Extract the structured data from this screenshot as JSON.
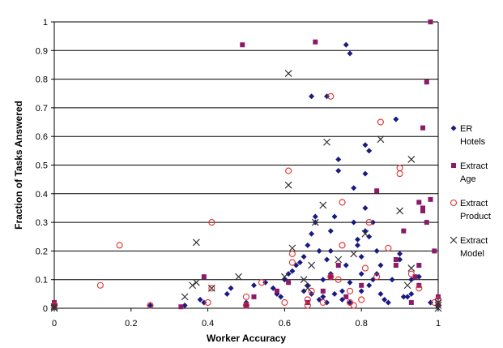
{
  "chart_data": {
    "type": "scatter",
    "title": "",
    "xlabel": "Worker Accuracy",
    "ylabel": "Fraction of Tasks Answered",
    "xlim": [
      0,
      1
    ],
    "ylim": [
      0,
      1
    ],
    "x_ticks": [
      "0",
      "0.2",
      "0.4",
      "0.6",
      "0.8",
      "1"
    ],
    "y_ticks": [
      "0",
      "0.1",
      "0.2",
      "0.3",
      "0.4",
      "0.5",
      "0.6",
      "0.7",
      "0.8",
      "0.9",
      "1"
    ],
    "grid": "horizontal",
    "legend_position": "right",
    "series": [
      {
        "name_lines": [
          "ER",
          "Hotels"
        ],
        "marker": "diamond",
        "color": "#1a1a80",
        "points": [
          [
            0,
            0.005
          ],
          [
            0,
            0.01
          ],
          [
            0.25,
            0.01
          ],
          [
            0.34,
            0.01
          ],
          [
            0.39,
            0.02
          ],
          [
            0.38,
            0.03
          ],
          [
            0.45,
            0.05
          ],
          [
            0.46,
            0.07
          ],
          [
            0.5,
            0.02
          ],
          [
            0.52,
            0.08
          ],
          [
            0.55,
            0.09
          ],
          [
            0.57,
            0.07
          ],
          [
            0.58,
            0.05
          ],
          [
            0.59,
            0.04
          ],
          [
            0.6,
            0.1
          ],
          [
            0.61,
            0.12
          ],
          [
            0.62,
            0.13
          ],
          [
            0.63,
            0.15
          ],
          [
            0.64,
            0.16
          ],
          [
            0.65,
            0.06
          ],
          [
            0.65,
            0.18
          ],
          [
            0.66,
            0.08
          ],
          [
            0.66,
            0.22
          ],
          [
            0.67,
            0.05
          ],
          [
            0.67,
            0.26
          ],
          [
            0.68,
            0.3
          ],
          [
            0.68,
            0.32
          ],
          [
            0.69,
            0.03
          ],
          [
            0.69,
            0.2
          ],
          [
            0.7,
            0.1
          ],
          [
            0.7,
            0.04
          ],
          [
            0.71,
            0.02
          ],
          [
            0.71,
            0.17
          ],
          [
            0.72,
            0.12
          ],
          [
            0.72,
            0.27
          ],
          [
            0.73,
            0.05
          ],
          [
            0.73,
            0.32
          ],
          [
            0.74,
            0.48
          ],
          [
            0.74,
            0.52
          ],
          [
            0.75,
            0.06
          ],
          [
            0.75,
            0.03
          ],
          [
            0.76,
            0.15
          ],
          [
            0.77,
            0.09
          ],
          [
            0.77,
            0.02
          ],
          [
            0.78,
            0.42
          ],
          [
            0.78,
            0.3
          ],
          [
            0.79,
            0.22
          ],
          [
            0.79,
            0.24
          ],
          [
            0.8,
            0.12
          ],
          [
            0.8,
            0.18
          ],
          [
            0.8,
            0.06
          ],
          [
            0.81,
            0.27
          ],
          [
            0.81,
            0.35
          ],
          [
            0.81,
            0.57
          ],
          [
            0.82,
            0.55
          ],
          [
            0.82,
            0.25
          ],
          [
            0.82,
            0.08
          ],
          [
            0.83,
            0.1
          ],
          [
            0.83,
            0.3
          ],
          [
            0.84,
            0.2
          ],
          [
            0.84,
            0.12
          ],
          [
            0.85,
            0.05
          ],
          [
            0.85,
            0.15
          ],
          [
            0.86,
            0.03
          ],
          [
            0.87,
            0.02
          ],
          [
            0.88,
            0.1
          ],
          [
            0.89,
            0.66
          ],
          [
            0.9,
            0.19
          ],
          [
            0.9,
            0.17
          ],
          [
            0.91,
            0.04
          ],
          [
            0.92,
            0.04
          ],
          [
            0.93,
            0.05
          ],
          [
            0.93,
            0.1
          ],
          [
            0.95,
            0.11
          ],
          [
            0.98,
            0.02
          ],
          [
            1,
            0.01
          ],
          [
            0.67,
            0.74
          ],
          [
            0.71,
            0.74
          ],
          [
            0.76,
            0.92
          ],
          [
            0.77,
            0.89
          ],
          [
            0.81,
            0.47
          ],
          [
            0.72,
            0.2
          ]
        ]
      },
      {
        "name_lines": [
          "Extract",
          "Age"
        ],
        "marker": "square",
        "color": "#8b1a6b",
        "points": [
          [
            0,
            0.01
          ],
          [
            0,
            0.02
          ],
          [
            0.33,
            0.005
          ],
          [
            0.39,
            0.11
          ],
          [
            0.49,
            0.92
          ],
          [
            0.5,
            0.01
          ],
          [
            0.52,
            0.04
          ],
          [
            0.58,
            0.06
          ],
          [
            0.61,
            0.09
          ],
          [
            0.66,
            0.02
          ],
          [
            0.68,
            0.93
          ],
          [
            0.7,
            0.06
          ],
          [
            0.72,
            0.11
          ],
          [
            0.74,
            0.15
          ],
          [
            0.76,
            0.04
          ],
          [
            0.8,
            0.08
          ],
          [
            0.84,
            0.41
          ],
          [
            0.89,
            0.17
          ],
          [
            0.89,
            0.15
          ],
          [
            0.91,
            0.27
          ],
          [
            0.93,
            0.02
          ],
          [
            0.94,
            0.11
          ],
          [
            0.95,
            0.08
          ],
          [
            0.95,
            0.37
          ],
          [
            0.95,
            0.15
          ],
          [
            0.96,
            0.34
          ],
          [
            0.96,
            0.35
          ],
          [
            0.96,
            0.63
          ],
          [
            0.97,
            0.79
          ],
          [
            0.97,
            0.3
          ],
          [
            0.98,
            1.0
          ],
          [
            0.98,
            0.38
          ],
          [
            0.99,
            0.2
          ],
          [
            1,
            0.04
          ],
          [
            1,
            0.01
          ]
        ]
      },
      {
        "name_lines": [
          "Extract",
          "Product"
        ],
        "marker": "circle",
        "color": "#e03030",
        "points": [
          [
            0,
            0.01
          ],
          [
            0.12,
            0.08
          ],
          [
            0.17,
            0.22
          ],
          [
            0.25,
            0.01
          ],
          [
            0.4,
            0.02
          ],
          [
            0.41,
            0.07
          ],
          [
            0.41,
            0.3
          ],
          [
            0.5,
            0.01
          ],
          [
            0.5,
            0.04
          ],
          [
            0.54,
            0.09
          ],
          [
            0.6,
            0.02
          ],
          [
            0.61,
            0.48
          ],
          [
            0.62,
            0.19
          ],
          [
            0.62,
            0.16
          ],
          [
            0.66,
            0.03
          ],
          [
            0.66,
            0.01
          ],
          [
            0.67,
            0.06
          ],
          [
            0.7,
            0.02
          ],
          [
            0.72,
            0.11
          ],
          [
            0.72,
            0.74
          ],
          [
            0.74,
            0.1
          ],
          [
            0.75,
            0.22
          ],
          [
            0.75,
            0.37
          ],
          [
            0.77,
            0.02
          ],
          [
            0.77,
            0.06
          ],
          [
            0.78,
            0.01
          ],
          [
            0.8,
            0.03
          ],
          [
            0.81,
            0.14
          ],
          [
            0.82,
            0.3
          ],
          [
            0.84,
            0.11
          ],
          [
            0.85,
            0.65
          ],
          [
            0.87,
            0.21
          ],
          [
            0.9,
            0.47
          ],
          [
            0.9,
            0.49
          ],
          [
            0.93,
            0.12
          ],
          [
            0.95,
            0.07
          ],
          [
            0.99,
            0.02
          ],
          [
            1,
            0.03
          ]
        ]
      },
      {
        "name_lines": [
          "Extract",
          "Model"
        ],
        "marker": "x",
        "color": "#333333",
        "points": [
          [
            0,
            0.005
          ],
          [
            0,
            0.0
          ],
          [
            0.34,
            0.04
          ],
          [
            0.36,
            0.08
          ],
          [
            0.37,
            0.09
          ],
          [
            0.37,
            0.23
          ],
          [
            0.41,
            0.07
          ],
          [
            0.48,
            0.11
          ],
          [
            0.6,
            0.11
          ],
          [
            0.61,
            0.82
          ],
          [
            0.61,
            0.43
          ],
          [
            0.62,
            0.21
          ],
          [
            0.65,
            0.1
          ],
          [
            0.66,
            0.07
          ],
          [
            0.67,
            0.15
          ],
          [
            0.68,
            0.3
          ],
          [
            0.7,
            0.36
          ],
          [
            0.71,
            0.58
          ],
          [
            0.74,
            0.17
          ],
          [
            0.78,
            0.19
          ],
          [
            0.81,
            0.26
          ],
          [
            0.85,
            0.59
          ],
          [
            0.9,
            0.34
          ],
          [
            0.92,
            0.08
          ],
          [
            0.93,
            0.52
          ],
          [
            0.93,
            0.14
          ],
          [
            1,
            0.0
          ],
          [
            1,
            0.01
          ],
          [
            1,
            0.02
          ]
        ]
      }
    ]
  }
}
